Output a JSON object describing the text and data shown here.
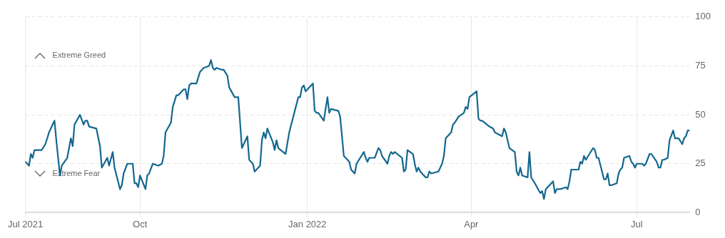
{
  "chart_data": {
    "type": "line",
    "x": [
      "2021-07-30",
      "2021-08-01",
      "2021-08-02",
      "2021-08-03",
      "2021-08-04",
      "2021-08-08",
      "2021-08-10",
      "2021-08-12",
      "2021-08-15",
      "2021-08-16",
      "2021-08-18",
      "2021-08-19",
      "2021-08-22",
      "2021-08-24",
      "2021-08-25",
      "2021-08-26",
      "2021-08-29",
      "2021-08-31",
      "2021-09-01",
      "2021-09-02",
      "2021-09-03",
      "2021-09-07",
      "2021-09-09",
      "2021-09-10",
      "2021-09-13",
      "2021-09-14",
      "2021-09-16",
      "2021-09-17",
      "2021-09-20",
      "2021-09-21",
      "2021-09-22",
      "2021-09-24",
      "2021-09-27",
      "2021-09-28",
      "2021-09-29",
      "2021-09-30",
      "2021-10-01",
      "2021-10-04",
      "2021-10-05",
      "2021-10-06",
      "2021-10-08",
      "2021-10-11",
      "2021-10-13",
      "2021-10-14",
      "2021-10-15",
      "2021-10-18",
      "2021-10-19",
      "2021-10-21",
      "2021-10-22",
      "2021-10-25",
      "2021-10-26",
      "2021-10-27",
      "2021-10-28",
      "2021-10-29",
      "2021-11-01",
      "2021-11-03",
      "2021-11-05",
      "2021-11-08",
      "2021-11-09",
      "2021-11-10",
      "2021-11-11",
      "2021-11-12",
      "2021-11-15",
      "2021-11-16",
      "2021-11-18",
      "2021-11-19",
      "2021-11-22",
      "2021-11-24",
      "2021-11-26",
      "2021-11-29",
      "2021-11-30",
      "2021-12-02",
      "2021-12-03",
      "2021-12-06",
      "2021-12-07",
      "2021-12-08",
      "2021-12-09",
      "2021-12-10",
      "2021-12-13",
      "2021-12-14",
      "2021-12-15",
      "2021-12-16",
      "2021-12-20",
      "2021-12-22",
      "2021-12-27",
      "2021-12-28",
      "2021-12-29",
      "2021-12-30",
      "2021-12-31",
      "2022-01-04",
      "2022-01-05",
      "2022-01-06",
      "2022-01-07",
      "2022-01-10",
      "2022-01-12",
      "2022-01-13",
      "2022-01-14",
      "2022-01-18",
      "2022-01-19",
      "2022-01-21",
      "2022-01-24",
      "2022-01-25",
      "2022-01-27",
      "2022-01-28",
      "2022-02-01",
      "2022-02-02",
      "2022-02-03",
      "2022-02-04",
      "2022-02-07",
      "2022-02-09",
      "2022-02-10",
      "2022-02-11",
      "2022-02-14",
      "2022-02-15",
      "2022-02-16",
      "2022-02-17",
      "2022-02-18",
      "2022-02-22",
      "2022-02-23",
      "2022-02-24",
      "2022-02-25",
      "2022-02-28",
      "2022-03-01",
      "2022-03-02",
      "2022-03-03",
      "2022-03-04",
      "2022-03-07",
      "2022-03-08",
      "2022-03-09",
      "2022-03-10",
      "2022-03-14",
      "2022-03-15",
      "2022-03-16",
      "2022-03-17",
      "2022-03-18",
      "2022-03-21",
      "2022-03-22",
      "2022-03-23",
      "2022-03-25",
      "2022-03-28",
      "2022-03-29",
      "2022-03-30",
      "2022-03-31",
      "2022-04-04",
      "2022-04-05",
      "2022-04-06",
      "2022-04-07",
      "2022-04-11",
      "2022-04-13",
      "2022-04-14",
      "2022-04-18",
      "2022-04-19",
      "2022-04-20",
      "2022-04-22",
      "2022-04-25",
      "2022-04-26",
      "2022-04-27",
      "2022-04-28",
      "2022-04-29",
      "2022-05-02",
      "2022-05-03",
      "2022-05-04",
      "2022-05-06",
      "2022-05-09",
      "2022-05-10",
      "2022-05-11",
      "2022-05-12",
      "2022-05-16",
      "2022-05-17",
      "2022-05-18",
      "2022-05-20",
      "2022-05-23",
      "2022-05-24",
      "2022-05-25",
      "2022-05-26",
      "2022-05-30",
      "2022-05-31",
      "2022-06-01",
      "2022-06-02",
      "2022-06-03",
      "2022-06-07",
      "2022-06-08",
      "2022-06-09",
      "2022-06-10",
      "2022-06-13",
      "2022-06-14",
      "2022-06-15",
      "2022-06-16",
      "2022-06-17",
      "2022-06-20",
      "2022-06-21",
      "2022-06-22",
      "2022-06-23",
      "2022-06-24",
      "2022-06-27",
      "2022-06-28",
      "2022-06-29",
      "2022-06-30",
      "2022-07-01",
      "2022-07-04",
      "2022-07-05",
      "2022-07-06",
      "2022-07-08",
      "2022-07-09",
      "2022-07-12",
      "2022-07-13",
      "2022-07-14",
      "2022-07-15",
      "2022-07-16",
      "2022-07-18",
      "2022-07-19",
      "2022-07-21",
      "2022-07-22",
      "2022-07-24",
      "2022-07-26",
      "2022-07-27",
      "2022-07-28",
      "2022-07-29",
      "2022-07-30"
    ],
    "series": [
      {
        "color": "#13678f",
        "values": [
          26,
          24,
          30,
          28,
          32,
          32,
          35,
          41,
          47,
          37,
          19,
          24,
          28,
          38,
          34,
          45,
          50,
          45,
          47,
          47,
          44,
          43,
          34,
          23,
          28,
          24,
          31,
          23,
          12,
          14,
          20,
          25,
          25,
          15,
          15,
          13,
          19,
          12,
          19,
          20,
          25,
          24,
          25,
          29,
          41,
          46,
          54,
          60,
          60,
          63,
          63,
          58,
          65,
          66,
          66,
          72,
          74,
          75,
          78,
          74,
          73,
          74,
          73,
          73,
          70,
          64,
          59,
          59,
          33,
          39,
          27,
          25,
          21,
          24,
          37,
          41,
          38,
          43,
          36,
          32,
          37,
          33,
          30,
          41,
          59,
          59,
          64,
          65,
          62,
          66,
          52,
          51,
          51,
          47,
          59,
          51,
          53,
          52,
          49,
          29,
          26,
          22,
          20,
          25,
          31,
          28,
          26,
          28,
          28,
          33,
          32,
          29,
          25,
          29,
          31,
          30,
          31,
          28,
          21,
          22,
          32,
          30,
          25,
          21,
          23,
          21,
          18,
          18,
          21,
          20,
          21,
          23,
          25,
          29,
          38,
          41,
          45,
          46,
          49,
          51,
          54,
          53,
          59,
          62,
          48,
          47,
          47,
          44,
          43,
          41,
          39,
          43,
          41,
          33,
          31,
          21,
          19,
          23,
          19,
          18,
          31,
          18,
          15,
          10,
          11,
          7,
          12,
          16,
          10,
          12,
          12,
          13,
          12,
          16,
          22,
          22,
          26,
          25,
          29,
          27,
          33,
          32,
          28,
          28,
          17,
          17,
          20,
          14,
          14,
          15,
          20,
          22,
          23,
          28,
          29,
          26,
          25,
          23,
          25,
          25,
          24,
          25,
          30,
          30,
          26,
          23,
          23,
          27,
          27,
          28,
          37,
          42,
          38,
          38,
          35,
          38,
          39,
          42,
          42
        ]
      }
    ],
    "xlim": [
      "2021-07-30",
      "2022-07-30"
    ],
    "xticks": [
      {
        "value": "2021-07-30",
        "label": "Jul 2021"
      },
      {
        "value": "2021-10-01",
        "label": "Oct"
      },
      {
        "value": "2022-01-01",
        "label": "Jan 2022"
      },
      {
        "value": "2022-04-01",
        "label": "Apr"
      },
      {
        "value": "2022-07-01",
        "label": "Jul"
      }
    ],
    "ylim": [
      0,
      100
    ],
    "yticks": [
      0,
      25,
      50,
      75,
      100
    ],
    "grid": true,
    "marker": "none",
    "line_style": "solid",
    "annotations": [
      "Extreme Greed",
      "Extreme Fear"
    ]
  }
}
